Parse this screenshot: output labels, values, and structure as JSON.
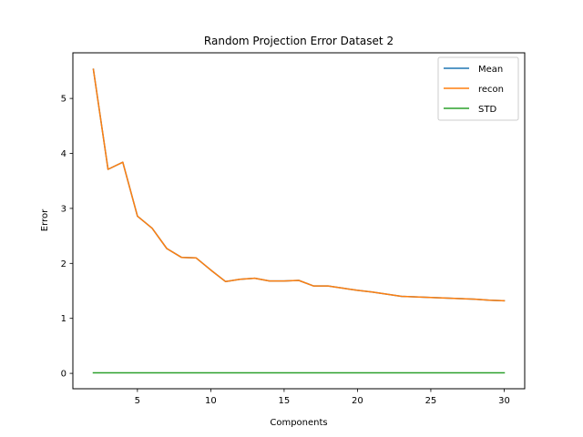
{
  "chart_data": {
    "type": "line",
    "title": "Random Projection Error Dataset 2",
    "xlabel": "Components",
    "ylabel": "Error",
    "xlim": [
      0.6,
      31.4
    ],
    "ylim": [
      -0.28,
      5.83
    ],
    "xticks": [
      5,
      10,
      15,
      20,
      25,
      30
    ],
    "yticks": [
      0,
      1,
      2,
      3,
      4,
      5
    ],
    "grid": false,
    "legend_position": "top-right",
    "x": [
      2,
      3,
      4,
      5,
      6,
      7,
      8,
      9,
      10,
      11,
      12,
      13,
      14,
      15,
      16,
      17,
      18,
      19,
      20,
      21,
      22,
      23,
      24,
      25,
      26,
      27,
      28,
      29,
      30
    ],
    "series": [
      {
        "name": "Mean",
        "color": "#1f77b4",
        "values": [
          5.53,
          3.71,
          3.84,
          2.86,
          2.64,
          2.27,
          2.11,
          2.1,
          1.88,
          1.67,
          1.71,
          1.73,
          1.68,
          1.68,
          1.69,
          1.59,
          1.59,
          1.55,
          1.51,
          1.48,
          1.44,
          1.4,
          1.39,
          1.38,
          1.37,
          1.36,
          1.35,
          1.33,
          1.32
        ]
      },
      {
        "name": "recon",
        "color": "#ff7f0e",
        "values": [
          5.53,
          3.71,
          3.84,
          2.86,
          2.64,
          2.27,
          2.11,
          2.1,
          1.88,
          1.67,
          1.71,
          1.73,
          1.68,
          1.68,
          1.69,
          1.59,
          1.59,
          1.55,
          1.51,
          1.48,
          1.44,
          1.4,
          1.39,
          1.38,
          1.37,
          1.36,
          1.35,
          1.33,
          1.32
        ]
      },
      {
        "name": "STD",
        "color": "#2ca02c",
        "values": [
          0.01,
          0.01,
          0.01,
          0.01,
          0.01,
          0.01,
          0.01,
          0.01,
          0.01,
          0.01,
          0.01,
          0.01,
          0.01,
          0.01,
          0.01,
          0.01,
          0.01,
          0.01,
          0.01,
          0.01,
          0.01,
          0.01,
          0.01,
          0.01,
          0.01,
          0.01,
          0.01,
          0.01,
          0.01
        ]
      }
    ]
  }
}
